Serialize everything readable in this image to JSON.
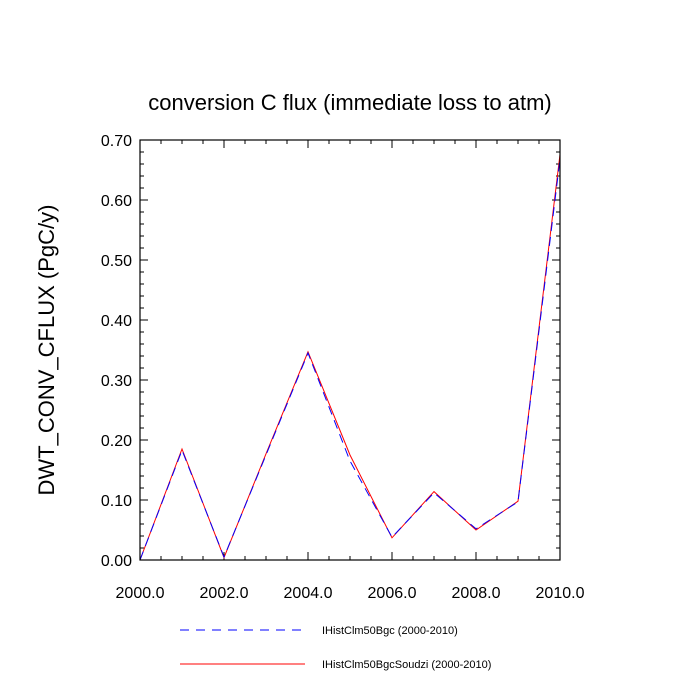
{
  "chart_data": {
    "type": "line",
    "title": "conversion C flux (immediate loss to atm)",
    "xlabel": "",
    "ylabel": "DWT_CONV_CFLUX  (PgC/y)",
    "xlim": [
      2000,
      2010
    ],
    "ylim": [
      0,
      0.7
    ],
    "x": [
      2000,
      2001,
      2002,
      2003,
      2004,
      2005,
      2006,
      2007,
      2008,
      2009,
      2010
    ],
    "xticks": [
      "2000.0",
      "2002.0",
      "2004.0",
      "2006.0",
      "2008.0",
      "2010.0"
    ],
    "yticks": [
      "0.00",
      "0.10",
      "0.20",
      "0.30",
      "0.40",
      "0.50",
      "0.60",
      "0.70"
    ],
    "series": [
      {
        "name": "IHistClm50Bgc (2000-2010)",
        "color": "#0000ff",
        "style": "dashed",
        "values": [
          0.0,
          0.183,
          0.005,
          0.175,
          0.345,
          0.165,
          0.038,
          0.112,
          0.052,
          0.097,
          0.668
        ]
      },
      {
        "name": "IHistClm50BgcSoudzi (2000-2010)",
        "color": "#ff0000",
        "style": "solid",
        "values": [
          0.0,
          0.185,
          0.004,
          0.177,
          0.347,
          0.175,
          0.037,
          0.114,
          0.05,
          0.098,
          0.676
        ]
      }
    ],
    "legend_position": "bottom"
  }
}
